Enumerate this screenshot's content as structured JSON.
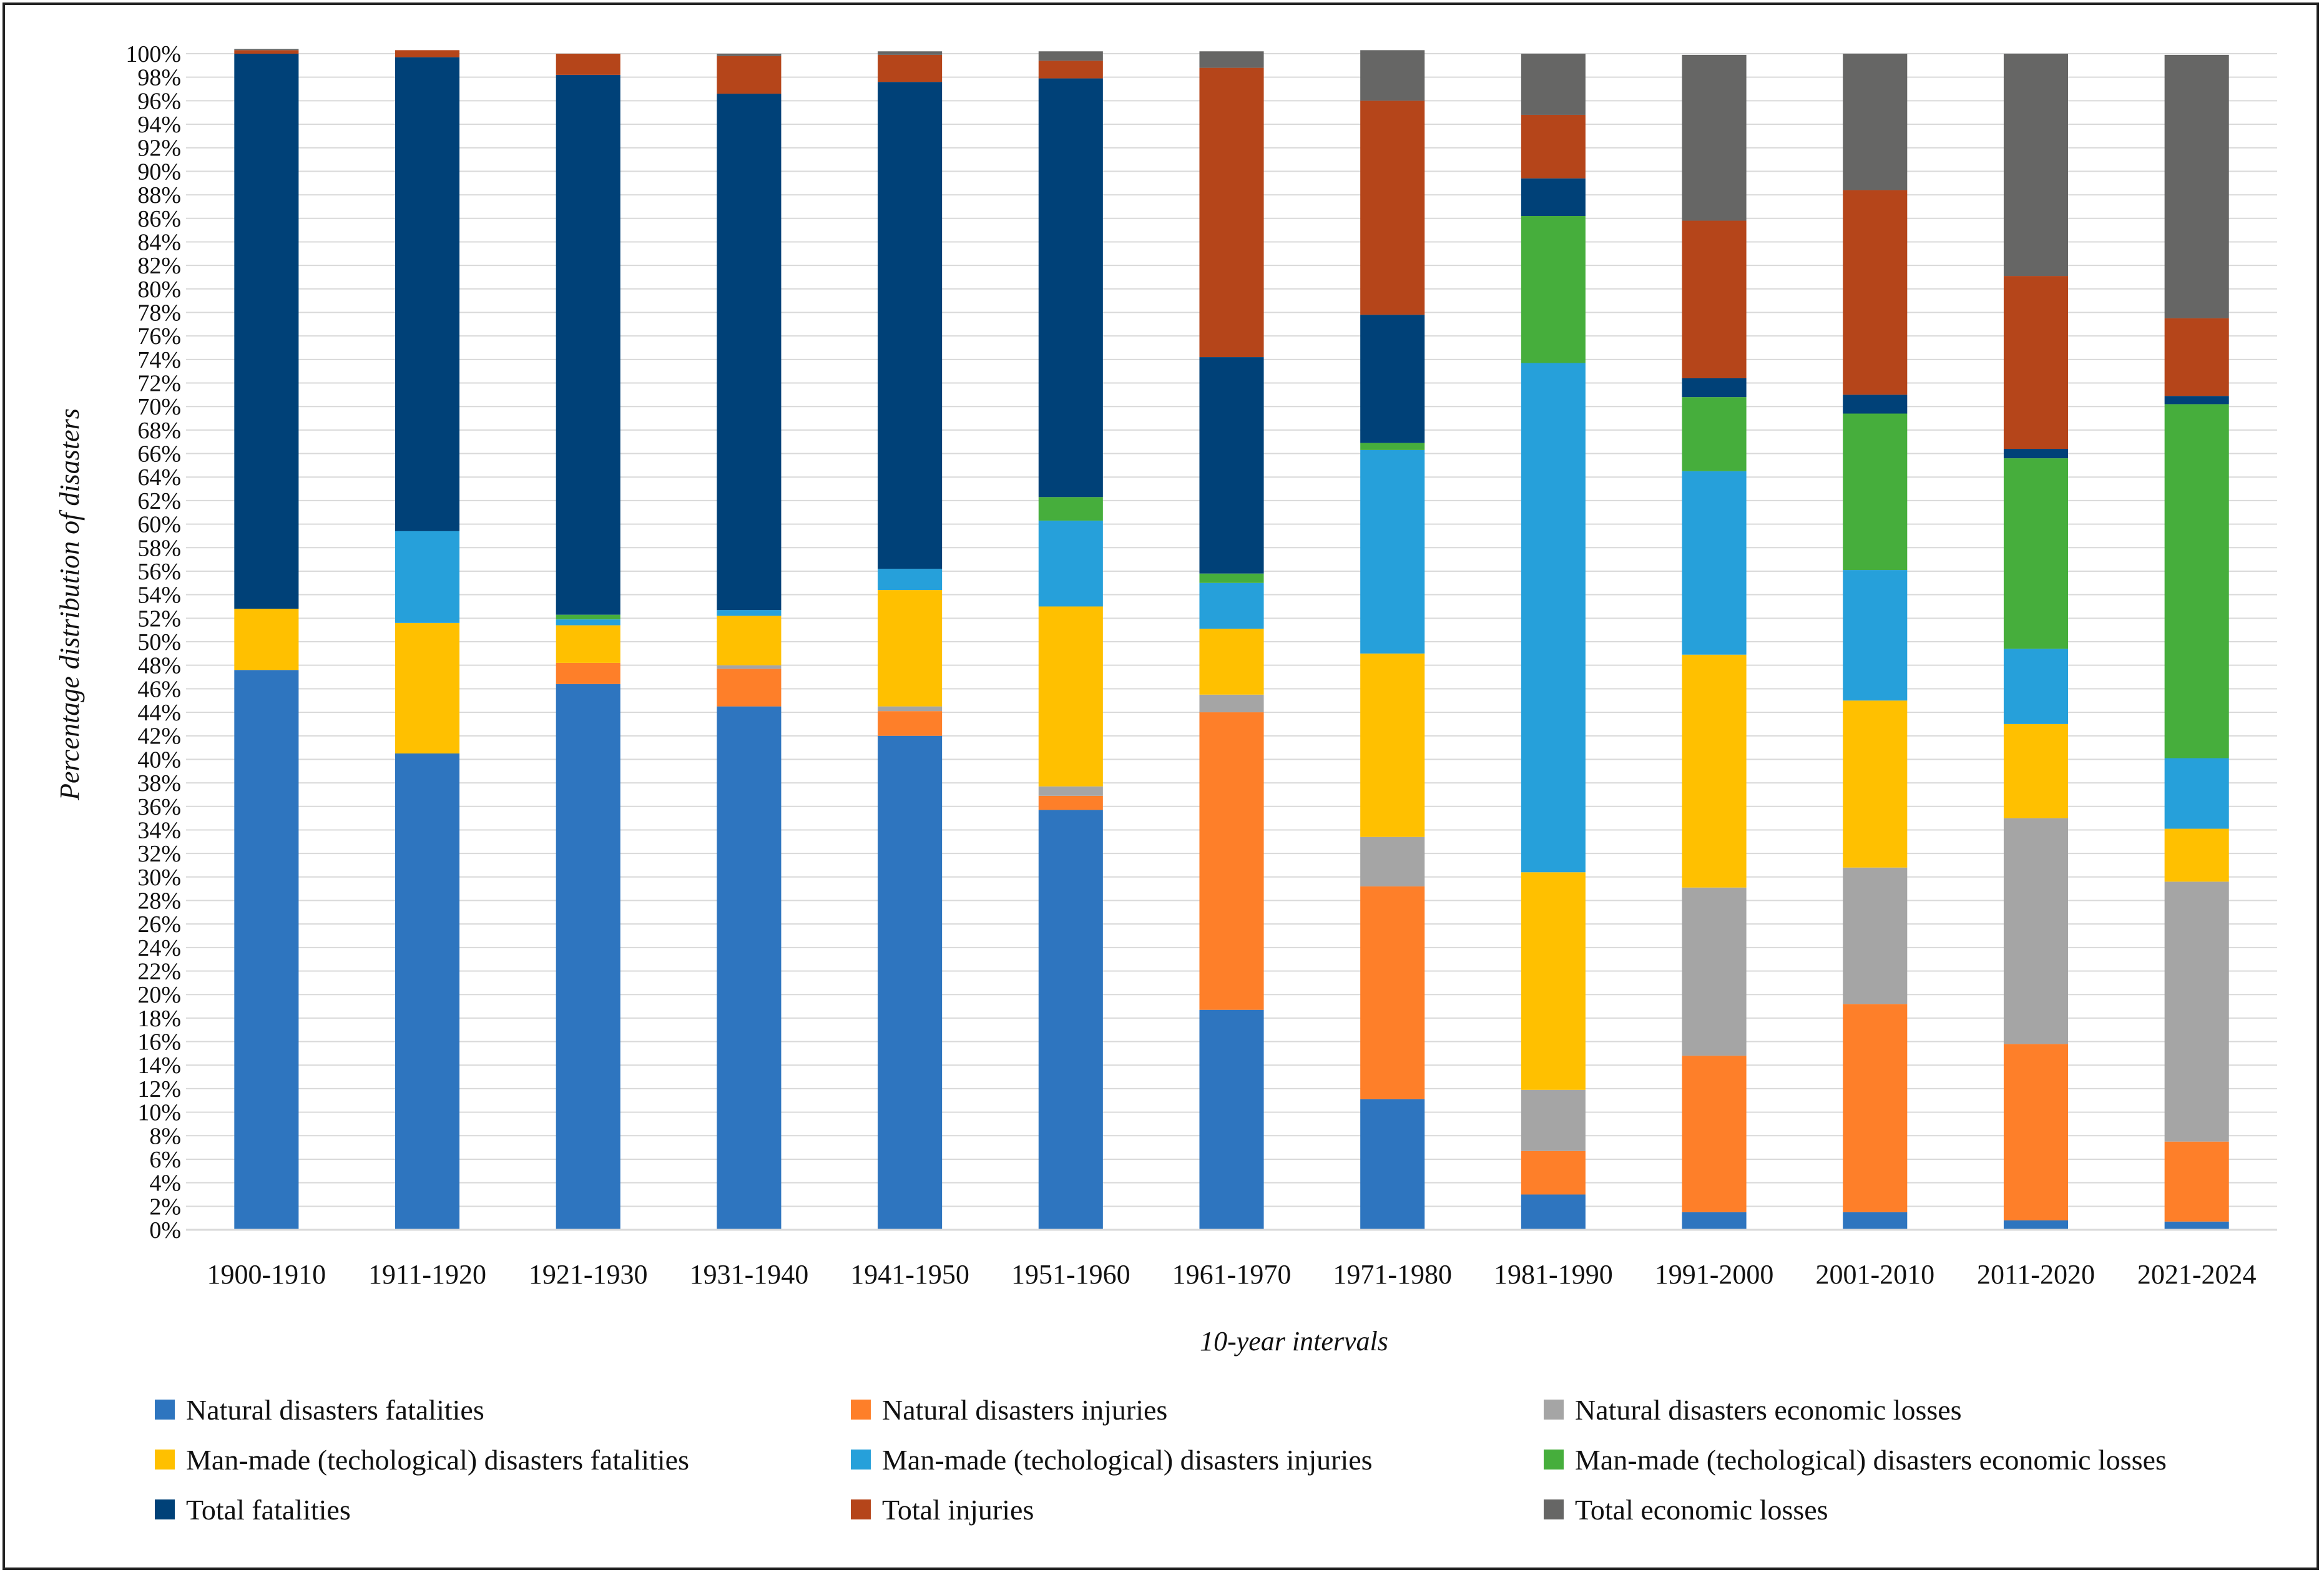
{
  "chart_data": {
    "type": "bar",
    "stacked": "percent",
    "title": "",
    "xlabel": "10-year intervals",
    "ylabel": "Percentage distribution of disasters",
    "ylim": [
      0,
      100
    ],
    "ytick_step": 2,
    "ytick_labels": [
      "0%",
      "2%",
      "4%",
      "6%",
      "8%",
      "10%",
      "12%",
      "14%",
      "16%",
      "18%",
      "20%",
      "22%",
      "24%",
      "26%",
      "28%",
      "30%",
      "32%",
      "34%",
      "36%",
      "38%",
      "40%",
      "42%",
      "44%",
      "46%",
      "48%",
      "50%",
      "52%",
      "54%",
      "56%",
      "58%",
      "60%",
      "62%",
      "64%",
      "66%",
      "68%",
      "70%",
      "72%",
      "74%",
      "76%",
      "78%",
      "80%",
      "82%",
      "84%",
      "86%",
      "88%",
      "90%",
      "92%",
      "94%",
      "96%",
      "98%",
      "100%"
    ],
    "grid": true,
    "legend_position": "bottom",
    "categories": [
      "1900-1910",
      "1911-1920",
      "1921-1930",
      "1931-1940",
      "1941-1950",
      "1951-1960",
      "1961-1970",
      "1971-1980",
      "1981-1990",
      "1991-2000",
      "2001-2010",
      "2011-2020",
      "2021-2024"
    ],
    "series": [
      {
        "name": "Natural disasters fatalities",
        "color": "#2E75BF",
        "values": [
          47.6,
          40.5,
          46.4,
          44.5,
          42.0,
          35.7,
          18.7,
          11.1,
          3.0,
          1.5,
          1.5,
          0.8,
          0.7
        ]
      },
      {
        "name": "Natural disasters injuries",
        "color": "#FE7F29",
        "values": [
          0.0,
          0.0,
          1.8,
          3.2,
          2.1,
          1.2,
          25.3,
          18.1,
          3.7,
          13.3,
          17.7,
          15.0,
          6.8
        ]
      },
      {
        "name": "Natural disasters economic losses",
        "color": "#A5A5A5",
        "values": [
          0.0,
          0.0,
          0.0,
          0.3,
          0.4,
          0.8,
          1.5,
          4.2,
          5.2,
          14.3,
          11.6,
          19.2,
          22.1
        ]
      },
      {
        "name": "Man-made (techological) disasters fatalities",
        "color": "#FFC000",
        "values": [
          5.2,
          11.1,
          3.2,
          4.2,
          9.9,
          15.3,
          5.6,
          15.6,
          18.5,
          19.8,
          14.2,
          8.0,
          4.5
        ]
      },
      {
        "name": "Man-made (techological) disasters injuries",
        "color": "#26A0DA",
        "values": [
          0.0,
          7.8,
          0.5,
          0.5,
          1.8,
          7.3,
          3.9,
          17.3,
          43.3,
          15.6,
          11.1,
          6.4,
          6.0
        ]
      },
      {
        "name": "Man-made (techological) disasters economic losses",
        "color": "#46AE3C",
        "values": [
          0.0,
          0.0,
          0.4,
          0.0,
          0.0,
          2.0,
          0.8,
          0.6,
          12.5,
          6.3,
          13.3,
          16.2,
          30.1
        ]
      },
      {
        "name": "Total fatalities",
        "color": "#004178",
        "values": [
          47.2,
          40.3,
          45.9,
          43.9,
          41.4,
          35.6,
          18.4,
          10.9,
          3.2,
          1.6,
          1.6,
          0.8,
          0.7
        ]
      },
      {
        "name": "Total injuries",
        "color": "#B5451A",
        "values": [
          0.3,
          0.6,
          1.8,
          3.2,
          2.3,
          1.5,
          24.6,
          18.2,
          5.4,
          13.4,
          17.4,
          14.7,
          6.6
        ]
      },
      {
        "name": "Total economic losses",
        "color": "#666665",
        "values": [
          0.1,
          0.0,
          0.0,
          0.2,
          0.3,
          0.8,
          1.4,
          4.3,
          5.2,
          14.1,
          11.6,
          18.9,
          22.4
        ]
      }
    ]
  }
}
